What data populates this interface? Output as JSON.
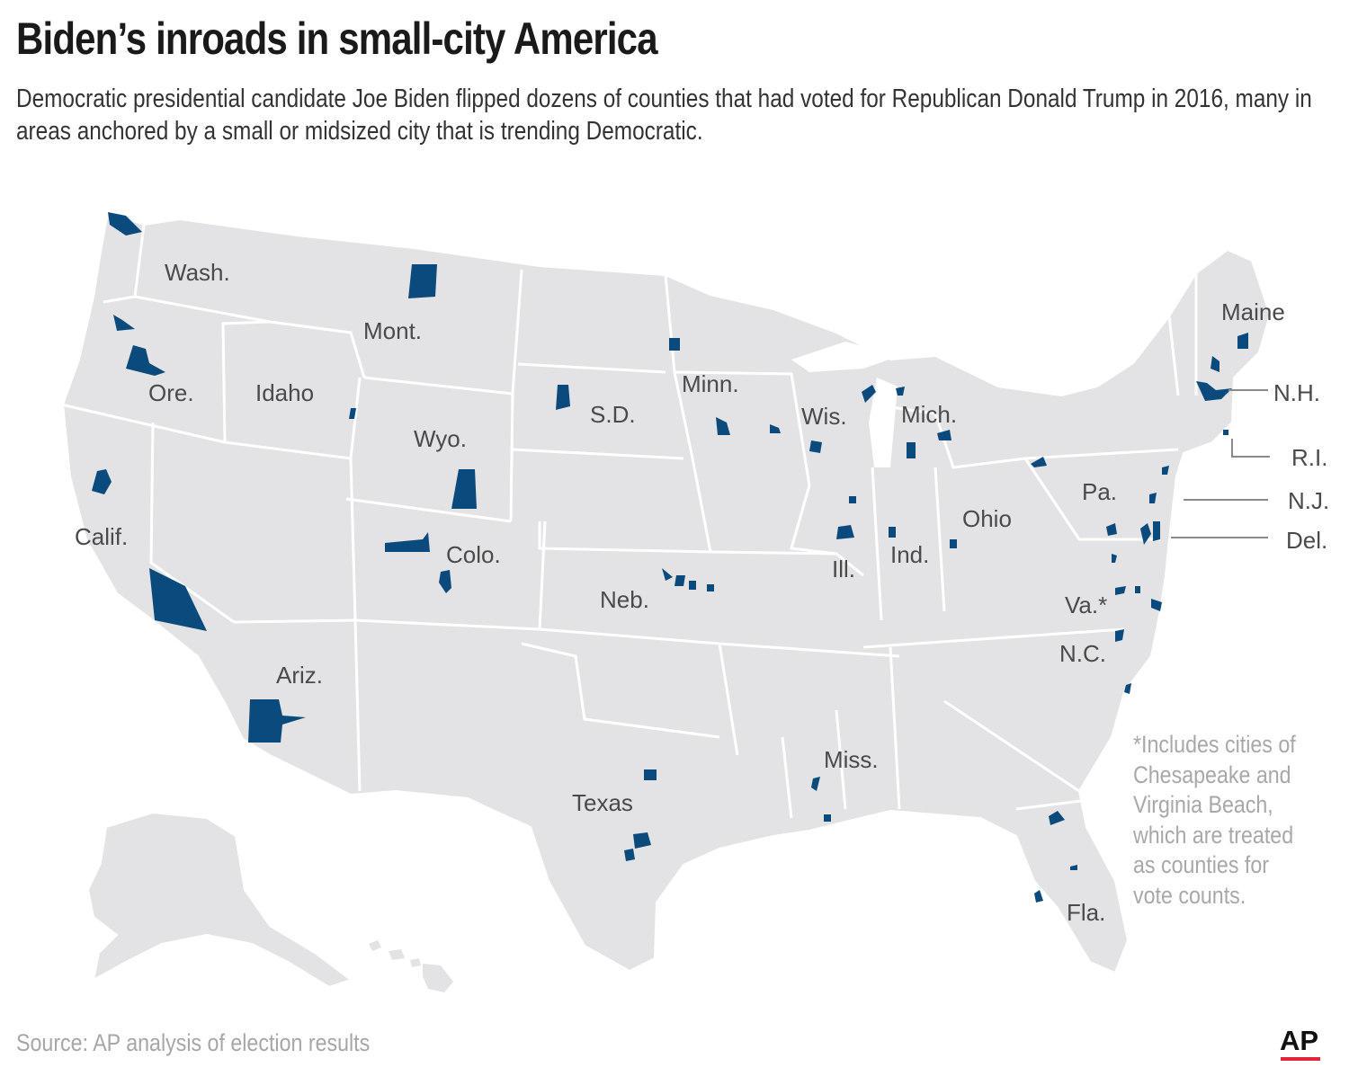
{
  "header": {
    "title": "Biden’s inroads in small-city America",
    "subtitle": "Democratic presidential candidate Joe Biden flipped dozens of counties that had voted for Republican Donald Trump in 2016, many in areas anchored by a small or midsized city that is trending Democratic."
  },
  "map": {
    "base_color": "#e3e3e5",
    "border_color": "#ffffff",
    "flipped_color": "#0b4a7d",
    "state_labels": {
      "wash": "Wash.",
      "ore": "Ore.",
      "calif": "Calif.",
      "idaho": "Idaho",
      "mont": "Mont.",
      "wyo": "Wyo.",
      "colo": "Colo.",
      "ariz": "Ariz.",
      "sd": "S.D.",
      "neb": "Neb.",
      "texas": "Texas",
      "minn": "Minn.",
      "wis": "Wis.",
      "mich": "Mich.",
      "ill": "Ill.",
      "ind": "Ind.",
      "ohio": "Ohio",
      "miss": "Miss.",
      "pa": "Pa.",
      "va": "Va.*",
      "nc": "N.C.",
      "maine": "Maine",
      "fla": "Fla."
    },
    "callouts": {
      "nh": "N.H.",
      "ri": "R.I.",
      "nj": "N.J.",
      "del": "Del."
    }
  },
  "note": {
    "lines": [
      "*Includes cities of",
      "Chesapeake and",
      "Virginia Beach,",
      "which are treated",
      "as counties for",
      "vote counts."
    ]
  },
  "footer": {
    "source": "Source: AP analysis of election results",
    "logo_text": "AP",
    "logo_accent": "#e0253a"
  }
}
